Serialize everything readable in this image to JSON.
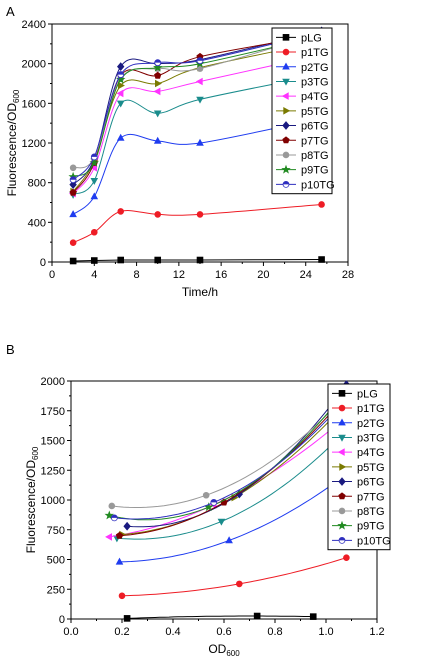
{
  "panels": [
    {
      "label": "A"
    },
    {
      "label": "B"
    }
  ],
  "chart_data": [
    {
      "type": "line",
      "panel": "A",
      "xlabel": "Time/h",
      "ylabel": "Fluorescence/OD",
      "ylabel_sub": "600",
      "xlim": [
        0,
        28
      ],
      "ylim": [
        0,
        2400
      ],
      "xticks": [
        "0",
        "4",
        "8",
        "12",
        "16",
        "20",
        "24",
        "28"
      ],
      "yticks": [
        "0",
        "400",
        "800",
        "1200",
        "1600",
        "2000",
        "2400"
      ],
      "grid": false,
      "legend_position": "right",
      "series": [
        {
          "name": "pLG",
          "color": "#000000",
          "marker": "square",
          "x": [
            2,
            4,
            6.5,
            10,
            14,
            25.5
          ],
          "y": [
            10,
            15,
            20,
            20,
            20,
            25
          ]
        },
        {
          "name": "p1TG",
          "color": "#ee1c25",
          "marker": "circle",
          "x": [
            2,
            4,
            6.5,
            10,
            14,
            25.5
          ],
          "y": [
            195,
            300,
            510,
            480,
            480,
            580
          ]
        },
        {
          "name": "p2TG",
          "color": "#1f3cf0",
          "marker": "triangle-up",
          "x": [
            2,
            4,
            6.5,
            10,
            14,
            25.5
          ],
          "y": [
            480,
            660,
            1250,
            1220,
            1200,
            1450
          ]
        },
        {
          "name": "p3TG",
          "color": "#1a8c8c",
          "marker": "triangle-down",
          "x": [
            2,
            4,
            6.5,
            10,
            14,
            25.5
          ],
          "y": [
            680,
            820,
            1600,
            1500,
            1640,
            1890
          ]
        },
        {
          "name": "p4TG",
          "color": "#ff33ff",
          "marker": "triangle-left",
          "x": [
            2,
            4,
            6.5,
            10,
            14,
            25.5
          ],
          "y": [
            690,
            950,
            1700,
            1720,
            1820,
            2090
          ]
        },
        {
          "name": "p5TG",
          "color": "#7a7a00",
          "marker": "triangle-right",
          "x": [
            2,
            4,
            6.5,
            10,
            14,
            25.5
          ],
          "y": [
            710,
            1020,
            1780,
            1800,
            1960,
            2220
          ]
        },
        {
          "name": "p6TG",
          "color": "#1a1a80",
          "marker": "diamond",
          "x": [
            2,
            4,
            6.5,
            10,
            14,
            25.5
          ],
          "y": [
            780,
            1040,
            1970,
            2000,
            2040,
            2330
          ]
        },
        {
          "name": "p7TG",
          "color": "#800000",
          "marker": "pentagon",
          "x": [
            2,
            4,
            6.5,
            10,
            14,
            25.5
          ],
          "y": [
            700,
            1000,
            1880,
            1880,
            2070,
            2290
          ]
        },
        {
          "name": "p8TG",
          "color": "#999999",
          "marker": "circle",
          "x": [
            2,
            4,
            6.5,
            10,
            14,
            25.5
          ],
          "y": [
            950,
            1050,
            1850,
            1950,
            1950,
            2310
          ]
        },
        {
          "name": "p9TG",
          "color": "#218a21",
          "marker": "star",
          "x": [
            2,
            4,
            6.5,
            10,
            14,
            25.5
          ],
          "y": [
            860,
            1000,
            1840,
            1960,
            2000,
            2280
          ]
        },
        {
          "name": "p10TG",
          "color": "#2f2fbf",
          "marker": "half-circle",
          "x": [
            2,
            4,
            6.5,
            10,
            14,
            25.5
          ],
          "y": [
            830,
            1060,
            1890,
            2010,
            2030,
            2320
          ]
        }
      ]
    },
    {
      "type": "scatter",
      "panel": "B",
      "xlabel": "OD",
      "xlabel_sub": "600",
      "ylabel": "Fluorescence/OD",
      "ylabel_sub": "600",
      "xlim": [
        0.0,
        1.2
      ],
      "ylim": [
        0,
        2000
      ],
      "xticks": [
        "0.0",
        "0.2",
        "0.4",
        "0.6",
        "0.8",
        "1.0",
        "1.2"
      ],
      "yticks": [
        "0",
        "250",
        "500",
        "750",
        "1000",
        "1250",
        "1500",
        "1750",
        "2000"
      ],
      "grid": false,
      "legend_position": "right",
      "trend": "quadratic fit",
      "series": [
        {
          "name": "pLG",
          "color": "#000000",
          "marker": "square",
          "x": [
            0.22,
            0.73,
            0.95
          ],
          "y": [
            5,
            25,
            20
          ]
        },
        {
          "name": "p1TG",
          "color": "#ee1c25",
          "marker": "circle",
          "x": [
            0.2,
            0.66,
            1.08
          ],
          "y": [
            195,
            295,
            515
          ]
        },
        {
          "name": "p2TG",
          "color": "#1f3cf0",
          "marker": "triangle-up",
          "x": [
            0.19,
            0.62,
            1.1
          ],
          "y": [
            480,
            660,
            1250
          ]
        },
        {
          "name": "p3TG",
          "color": "#1a8c8c",
          "marker": "triangle-down",
          "x": [
            0.18,
            0.59,
            1.08
          ],
          "y": [
            680,
            820,
            1590
          ]
        },
        {
          "name": "p4TG",
          "color": "#ff33ff",
          "marker": "triangle-left",
          "x": [
            0.15,
            0.56,
            1.09
          ],
          "y": [
            690,
            960,
            1720
          ]
        },
        {
          "name": "p5TG",
          "color": "#7a7a00",
          "marker": "triangle-right",
          "x": [
            0.2,
            0.64,
            1.09
          ],
          "y": [
            710,
            1020,
            1840
          ]
        },
        {
          "name": "p6TG",
          "color": "#1a1a80",
          "marker": "diamond",
          "x": [
            0.22,
            0.66,
            1.08
          ],
          "y": [
            780,
            1050,
            1970
          ]
        },
        {
          "name": "p7TG",
          "color": "#800000",
          "marker": "pentagon",
          "x": [
            0.19,
            0.6,
            1.08
          ],
          "y": [
            700,
            980,
            1880
          ]
        },
        {
          "name": "p8TG",
          "color": "#999999",
          "marker": "circle",
          "x": [
            0.16,
            0.53,
            1.07
          ],
          "y": [
            950,
            1040,
            1860
          ]
        },
        {
          "name": "p9TG",
          "color": "#218a21",
          "marker": "star",
          "x": [
            0.15,
            0.54,
            1.06
          ],
          "y": [
            870,
            940,
            1870
          ]
        },
        {
          "name": "p10TG",
          "color": "#2f2fbf",
          "marker": "half-circle",
          "x": [
            0.17,
            0.56,
            1.08
          ],
          "y": [
            850,
            980,
            1850
          ]
        }
      ]
    }
  ]
}
